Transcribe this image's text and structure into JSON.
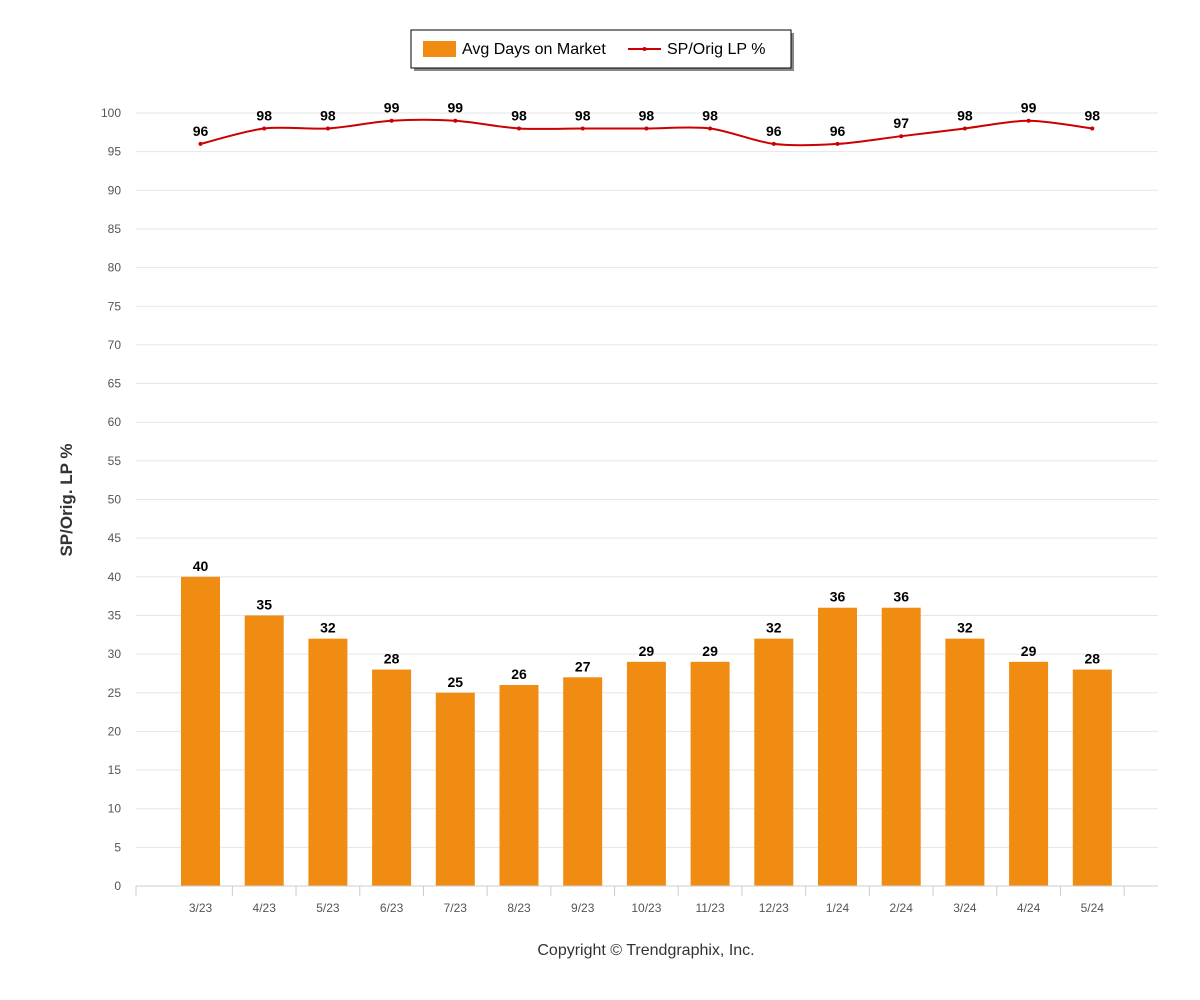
{
  "chart_data": {
    "type": "bar",
    "title": "",
    "xlabel": "",
    "ylabel": "SP/Orig. LP %",
    "ylim": [
      0,
      100
    ],
    "ytick_step": 5,
    "grid": true,
    "legend_position": "top-center",
    "categories": [
      "3/23",
      "4/23",
      "5/23",
      "6/23",
      "7/23",
      "8/23",
      "9/23",
      "10/23",
      "11/23",
      "12/23",
      "1/24",
      "2/24",
      "3/24",
      "4/24",
      "5/24"
    ],
    "series": [
      {
        "name": "Avg Days on Market",
        "type": "bar",
        "color": "#F08C12",
        "values": [
          40,
          35,
          32,
          28,
          25,
          26,
          27,
          29,
          29,
          32,
          36,
          36,
          32,
          29,
          28
        ]
      },
      {
        "name": "SP/Orig LP %",
        "type": "line",
        "color": "#CC0000",
        "values": [
          96,
          98,
          98,
          99,
          99,
          98,
          98,
          98,
          98,
          96,
          96,
          97,
          98,
          99,
          98
        ]
      }
    ]
  },
  "legend": {
    "bar_label": "Avg Days on Market",
    "line_label": "SP/Orig LP %"
  },
  "copyright": "Copyright © Trendgraphix, Inc."
}
